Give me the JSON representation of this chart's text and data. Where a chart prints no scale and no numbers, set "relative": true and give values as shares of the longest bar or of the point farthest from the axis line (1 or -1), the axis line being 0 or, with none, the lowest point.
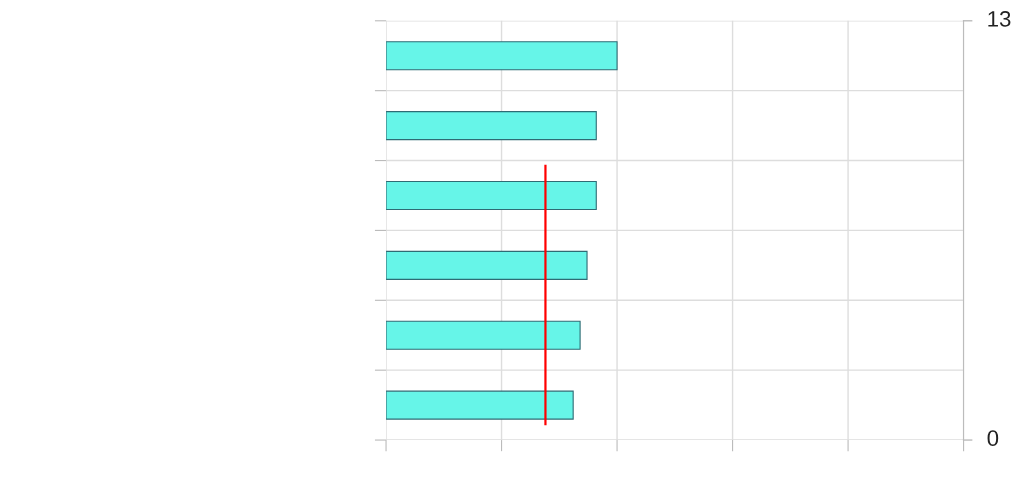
{
  "chart_data": {
    "type": "bar",
    "orientation": "horizontal",
    "relative": true,
    "categories": [
      null,
      null,
      null,
      null,
      null,
      null
    ],
    "values": [
      1,
      0.91,
      0.91,
      0.87,
      0.84,
      0.81
    ],
    "color": "#66f5e8",
    "annotations": [
      "13",
      "0"
    ],
    "ref_lines": [
      {
        "axis": "x",
        "value": 0.69,
        "color": "#ff0000"
      }
    ],
    "grid": true
  }
}
